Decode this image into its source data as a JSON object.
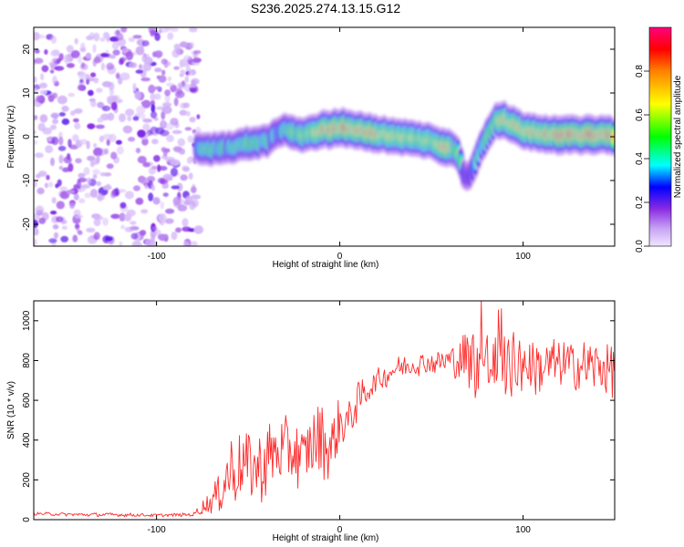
{
  "title": "S236.2025.274.13.15.G12",
  "chart_data": [
    {
      "type": "heatmap",
      "xlabel": "Height of straight line (km)",
      "ylabel": "Frequency (Hz)",
      "xlim": [
        -167,
        150
      ],
      "ylim": [
        -25,
        25
      ],
      "xticks": [
        -100,
        0,
        100
      ],
      "yticks": [
        -20,
        -10,
        0,
        10,
        20
      ],
      "colorbar": {
        "label": "Normalized spectral amplitude",
        "range": [
          0,
          1
        ],
        "ticks": [
          0.0,
          0.2,
          0.4,
          0.6,
          0.8
        ],
        "colormap": [
          "#f0e6ff",
          "#c9a3f5",
          "#8a2be2",
          "#0000ff",
          "#00ffff",
          "#00ff00",
          "#ffff00",
          "#ff8000",
          "#ff0000",
          "#ff0080"
        ]
      },
      "ridge": {
        "x": [
          -78,
          -70,
          -60,
          -50,
          -40,
          -35,
          -30,
          -20,
          -10,
          0,
          10,
          20,
          30,
          40,
          50,
          55,
          60,
          65,
          68,
          71,
          73,
          76,
          80,
          85,
          90,
          95,
          100,
          110,
          120,
          130,
          140,
          150
        ],
        "freq": [
          -2.5,
          -2.8,
          -2.5,
          -1.5,
          -1.0,
          1.0,
          1.5,
          0.5,
          1.5,
          2.0,
          1.5,
          0.5,
          0.3,
          -0.5,
          -1.0,
          -2.0,
          -2.5,
          -4.0,
          -9.0,
          -8.5,
          -6.5,
          -3.5,
          0.0,
          3.5,
          3.8,
          2.5,
          1.5,
          0.8,
          0.5,
          0.3,
          0.5,
          0.2
        ],
        "amplitude": [
          0.35,
          0.45,
          0.4,
          0.5,
          0.45,
          0.35,
          0.5,
          0.55,
          0.75,
          0.8,
          0.8,
          0.75,
          0.65,
          0.65,
          0.6,
          0.75,
          0.7,
          0.5,
          0.3,
          0.25,
          0.35,
          0.45,
          0.55,
          0.65,
          0.7,
          0.7,
          0.75,
          0.75,
          0.8,
          0.8,
          0.85,
          0.75
        ]
      },
      "noise_region_x": [
        -167,
        -80
      ]
    },
    {
      "type": "line",
      "xlabel": "Height of straight line (km)",
      "ylabel": "SNR (10 * v/v)",
      "xlim": [
        -167,
        150
      ],
      "ylim": [
        0,
        1100
      ],
      "xticks": [
        -100,
        0,
        100
      ],
      "yticks": [
        0,
        200,
        400,
        600,
        800,
        1000
      ],
      "color": "#ff2a2a",
      "envelope": {
        "x": [
          -167,
          -140,
          -120,
          -100,
          -80,
          -75,
          -70,
          -65,
          -60,
          -55,
          -50,
          -45,
          -40,
          -35,
          -30,
          -25,
          -20,
          -15,
          -10,
          -5,
          0,
          5,
          10,
          15,
          20,
          25,
          30,
          40,
          50,
          60,
          70,
          75,
          80,
          85,
          90,
          100,
          110,
          120,
          130,
          140,
          150
        ],
        "mean": [
          30,
          25,
          25,
          22,
          25,
          60,
          90,
          150,
          250,
          260,
          280,
          250,
          300,
          330,
          340,
          360,
          300,
          380,
          400,
          350,
          480,
          500,
          600,
          650,
          700,
          720,
          760,
          780,
          790,
          800,
          810,
          790,
          780,
          760,
          780,
          780,
          770,
          780,
          770,
          770,
          760
        ],
        "spread": [
          8,
          10,
          10,
          8,
          10,
          40,
          60,
          120,
          200,
          180,
          200,
          180,
          200,
          180,
          180,
          200,
          150,
          180,
          200,
          150,
          150,
          120,
          100,
          80,
          60,
          60,
          60,
          60,
          60,
          80,
          150,
          200,
          200,
          180,
          180,
          160,
          150,
          140,
          140,
          140,
          150
        ]
      }
    }
  ]
}
